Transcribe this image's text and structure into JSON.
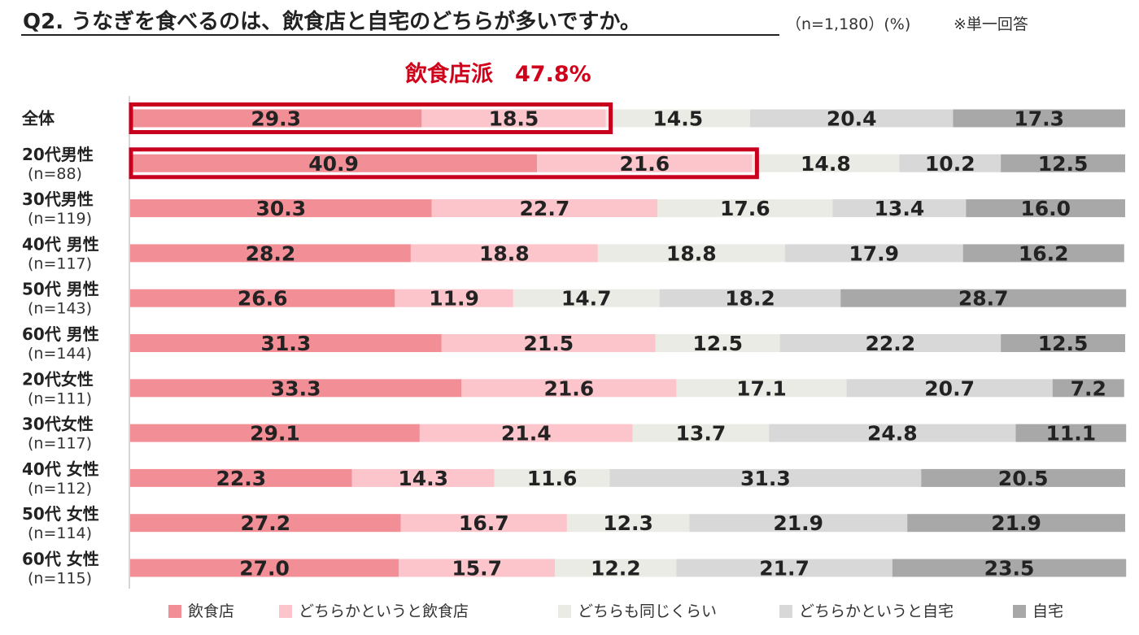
{
  "header": {
    "question": "Q2. うなぎを食べるのは、飲食店と自宅のどちらが多いですか。",
    "sample": "（n=1,180）(%)",
    "note": "※単一回答"
  },
  "highlight": {
    "label": "飲食店派　47.8%"
  },
  "colors": {
    "restaurant": "#f28e96",
    "lean_restaurant": "#fbc5cb",
    "same": "#ebebe5",
    "lean_home": "#d8d8d8",
    "home": "#a8a8a8",
    "highlight_box": "#c8001e"
  },
  "chart_data": {
    "type": "bar",
    "orientation": "horizontal",
    "stacked": true,
    "percent": true,
    "xlim": [
      0,
      100
    ],
    "categories": [
      {
        "name": "全体",
        "n": ""
      },
      {
        "name": "20代男性",
        "n": "(n=88)"
      },
      {
        "name": "30代男性",
        "n": "(n=119)"
      },
      {
        "name": "40代 男性",
        "n": "(n=117)"
      },
      {
        "name": "50代 男性",
        "n": "(n=143)"
      },
      {
        "name": "60代 男性",
        "n": "(n=144)"
      },
      {
        "name": "20代女性",
        "n": "(n=111)"
      },
      {
        "name": "30代女性",
        "n": "(n=117)"
      },
      {
        "name": "40代 女性",
        "n": "(n=112)"
      },
      {
        "name": "50代 女性",
        "n": "(n=114)"
      },
      {
        "name": "60代 女性",
        "n": "(n=115)"
      }
    ],
    "series": [
      {
        "name": "飲食店",
        "color_key": "restaurant",
        "values": [
          29.3,
          40.9,
          30.3,
          28.2,
          26.6,
          31.3,
          33.3,
          29.1,
          22.3,
          27.2,
          27.0
        ],
        "labels": [
          "29.3",
          "40.9",
          "30.3",
          "28.2",
          "26.6",
          "31.3",
          "33.3",
          "29.1",
          "22.3",
          "27.2",
          "27.0"
        ]
      },
      {
        "name": "どちらかというと飲食店",
        "color_key": "lean_restaurant",
        "values": [
          18.5,
          21.6,
          22.7,
          18.8,
          11.9,
          21.5,
          21.6,
          21.4,
          14.3,
          16.7,
          15.7
        ],
        "labels": [
          "18.5",
          "21.6",
          "22.7",
          "18.8",
          "11.9",
          "21.5",
          "21.6",
          "21.4",
          "14.3",
          "16.7",
          "15.7"
        ]
      },
      {
        "name": "どちらも同じくらい",
        "color_key": "same",
        "values": [
          14.5,
          14.8,
          17.6,
          18.8,
          14.7,
          12.5,
          17.1,
          13.7,
          11.6,
          12.3,
          12.2
        ],
        "labels": [
          "14.5",
          "14.8",
          "17.6",
          "18.8",
          "14.7",
          "12.5",
          "17.1",
          "13.7",
          "11.6",
          "12.3",
          "12.2"
        ]
      },
      {
        "name": "どちらかというと自宅",
        "color_key": "lean_home",
        "values": [
          20.4,
          10.2,
          13.4,
          17.9,
          18.2,
          22.2,
          20.7,
          24.8,
          31.3,
          21.9,
          21.7
        ],
        "labels": [
          "20.4",
          "10.2",
          "13.4",
          "17.9",
          "18.2",
          "22.2",
          "20.7",
          "24.8",
          "31.3",
          "21.9",
          "21.7"
        ]
      },
      {
        "name": "自宅",
        "color_key": "home",
        "values": [
          17.3,
          12.5,
          16.0,
          16.2,
          28.7,
          12.5,
          7.2,
          11.1,
          20.5,
          21.9,
          23.5
        ],
        "labels": [
          "17.3",
          "12.5",
          "16.0",
          "16.2",
          "28.7",
          "12.5",
          "7.2",
          "11.1",
          "20.5",
          "21.9",
          "23.5"
        ]
      }
    ],
    "highlighted_rows": [
      0,
      1
    ],
    "highlighted_series_count": 2,
    "legend_position": "bottom"
  }
}
